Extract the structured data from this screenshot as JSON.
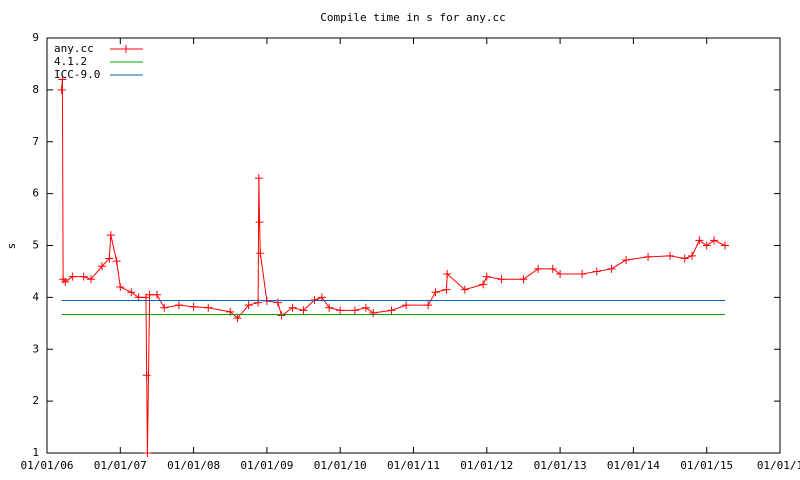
{
  "chart_data": {
    "type": "line",
    "title": "Compile time in s for any.cc",
    "ylabel": "s",
    "xlim": [
      2006,
      2016
    ],
    "ylim": [
      1,
      9
    ],
    "xticks": [
      {
        "value": 2006,
        "label": "01/01/06"
      },
      {
        "value": 2007,
        "label": "01/01/07"
      },
      {
        "value": 2008,
        "label": "01/01/08"
      },
      {
        "value": 2009,
        "label": "01/01/09"
      },
      {
        "value": 2010,
        "label": "01/01/10"
      },
      {
        "value": 2011,
        "label": "01/01/11"
      },
      {
        "value": 2012,
        "label": "01/01/12"
      },
      {
        "value": 2013,
        "label": "01/01/13"
      },
      {
        "value": 2014,
        "label": "01/01/14"
      },
      {
        "value": 2015,
        "label": "01/01/15"
      },
      {
        "value": 2016,
        "label": "01/01/1"
      }
    ],
    "yticks": [
      1,
      2,
      3,
      4,
      5,
      6,
      7,
      8,
      9
    ],
    "legend": "top-left",
    "series": [
      {
        "name": "any.cc",
        "color": "#ff0000",
        "markers": true,
        "x": [
          2006.2,
          2006.21,
          2006.22,
          2006.25,
          2006.35,
          2006.5,
          2006.6,
          2006.75,
          2006.85,
          2006.87,
          2006.95,
          2007.0,
          2007.15,
          2007.25,
          2007.35,
          2007.36,
          2007.37,
          2007.4,
          2007.5,
          2007.6,
          2007.8,
          2008.0,
          2008.2,
          2008.5,
          2008.6,
          2008.75,
          2008.88,
          2008.89,
          2008.9,
          2008.91,
          2009.0,
          2009.15,
          2009.2,
          2009.35,
          2009.5,
          2009.65,
          2009.75,
          2009.85,
          2010.0,
          2010.2,
          2010.35,
          2010.45,
          2010.7,
          2010.9,
          2011.2,
          2011.3,
          2011.45,
          2011.46,
          2011.7,
          2011.95,
          2012.0,
          2012.2,
          2012.5,
          2012.7,
          2012.9,
          2013.0,
          2013.3,
          2013.5,
          2013.7,
          2013.9,
          2014.2,
          2014.5,
          2014.7,
          2014.8,
          2014.9,
          2015.0,
          2015.1,
          2015.25
        ],
        "values": [
          8.0,
          8.2,
          4.35,
          4.3,
          4.4,
          4.4,
          4.35,
          4.6,
          4.75,
          5.2,
          4.7,
          4.2,
          4.1,
          4.0,
          4.0,
          2.5,
          1.0,
          4.05,
          4.05,
          3.8,
          3.85,
          3.82,
          3.8,
          3.72,
          3.6,
          3.85,
          3.9,
          6.3,
          5.45,
          4.85,
          3.93,
          3.9,
          3.65,
          3.8,
          3.75,
          3.95,
          4.0,
          3.8,
          3.75,
          3.75,
          3.8,
          3.7,
          3.75,
          3.85,
          3.85,
          4.1,
          4.15,
          4.45,
          4.15,
          4.25,
          4.4,
          4.35,
          4.35,
          4.55,
          4.55,
          4.45,
          4.45,
          4.5,
          4.55,
          4.72,
          4.78,
          4.8,
          4.75,
          4.8,
          5.1,
          5.0,
          5.1,
          5.0
        ]
      },
      {
        "name": "4.1.2",
        "color": "#00a000",
        "markers": false,
        "x": [
          2006.2,
          2015.25
        ],
        "values": [
          3.67,
          3.67
        ]
      },
      {
        "name": "ICC-9.0",
        "color": "#0060c0",
        "markers": false,
        "x": [
          2006.2,
          2015.25
        ],
        "values": [
          3.94,
          3.94
        ]
      }
    ]
  }
}
